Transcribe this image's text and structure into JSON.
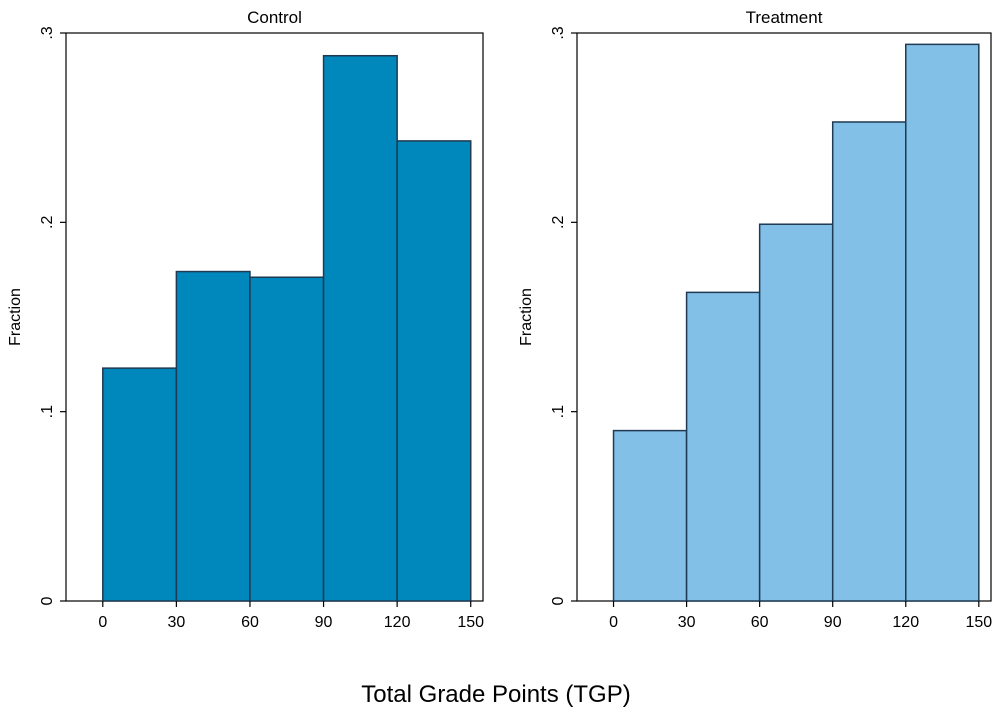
{
  "chart_data": {
    "type": "bar",
    "xlabel": "Total Grade Points (TGP)",
    "panels": [
      {
        "title": "Control",
        "ylabel": "Fraction",
        "bin_edges": [
          0,
          30,
          60,
          90,
          120,
          150
        ],
        "values": [
          0.123,
          0.174,
          0.171,
          0.288,
          0.243
        ],
        "xlim": [
          -15,
          155
        ],
        "ylim": [
          0,
          0.3
        ],
        "xticks": [
          "0",
          "30",
          "60",
          "90",
          "120",
          "150"
        ],
        "yticks": [
          "0",
          ".1",
          ".2",
          ".3"
        ],
        "color": "#0087BB"
      },
      {
        "title": "Treatment",
        "ylabel": "Fraction",
        "bin_edges": [
          0,
          30,
          60,
          90,
          120,
          150
        ],
        "values": [
          0.09,
          0.163,
          0.199,
          0.253,
          0.294
        ],
        "xlim": [
          -15,
          155
        ],
        "ylim": [
          0,
          0.3
        ],
        "xticks": [
          "0",
          "30",
          "60",
          "90",
          "120",
          "150"
        ],
        "yticks": [
          "0",
          ".1",
          ".2",
          ".3"
        ],
        "color": "#82C0E8"
      }
    ],
    "grid": false,
    "legend": "none"
  },
  "colors": {
    "edge": "#1F3A52",
    "frame": "#000000"
  }
}
